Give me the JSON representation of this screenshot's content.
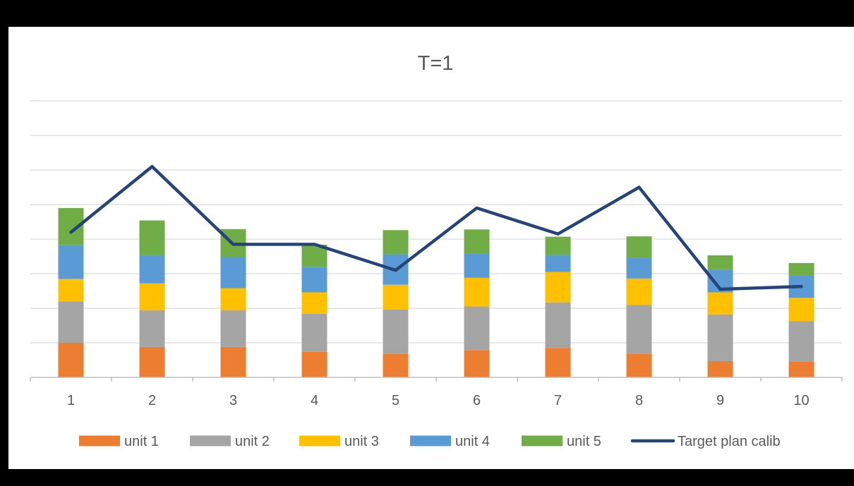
{
  "chart_data": {
    "type": "bar",
    "stacked": true,
    "title": "T=1",
    "xlabel": "",
    "ylabel": "",
    "categories": [
      "1",
      "2",
      "3",
      "4",
      "5",
      "6",
      "7",
      "8",
      "9",
      "10"
    ],
    "ylim": [
      0,
      8
    ],
    "gridlines": [
      1,
      2,
      3,
      4,
      5,
      6,
      7,
      8
    ],
    "y_tick_labels_visible": false,
    "grid": true,
    "legend_position": "bottom",
    "series": [
      {
        "name": "unit 1",
        "color": "#ED7D31",
        "values": [
          1.0,
          0.88,
          0.88,
          0.74,
          0.68,
          0.79,
          0.85,
          0.68,
          0.47,
          0.45
        ]
      },
      {
        "name": "unit 2",
        "color": "#A5A5A5",
        "values": [
          1.2,
          1.06,
          1.06,
          1.1,
          1.28,
          1.26,
          1.32,
          1.42,
          1.35,
          1.18
        ]
      },
      {
        "name": "unit 3",
        "color": "#FFC000",
        "values": [
          0.65,
          0.78,
          0.64,
          0.62,
          0.72,
          0.83,
          0.88,
          0.76,
          0.64,
          0.67
        ]
      },
      {
        "name": "unit 4",
        "color": "#5B9BD5",
        "values": [
          0.98,
          0.82,
          0.91,
          0.74,
          0.88,
          0.7,
          0.5,
          0.6,
          0.65,
          0.64
        ]
      },
      {
        "name": "unit 5",
        "color": "#70AD47",
        "values": [
          1.07,
          1.0,
          0.8,
          0.64,
          0.7,
          0.7,
          0.52,
          0.62,
          0.42,
          0.37
        ]
      }
    ],
    "line_series": {
      "name": "Target plan calib",
      "color": "#264478",
      "values": [
        4.2,
        6.1,
        3.85,
        3.85,
        3.1,
        4.9,
        4.15,
        5.5,
        2.55,
        2.63
      ]
    }
  }
}
